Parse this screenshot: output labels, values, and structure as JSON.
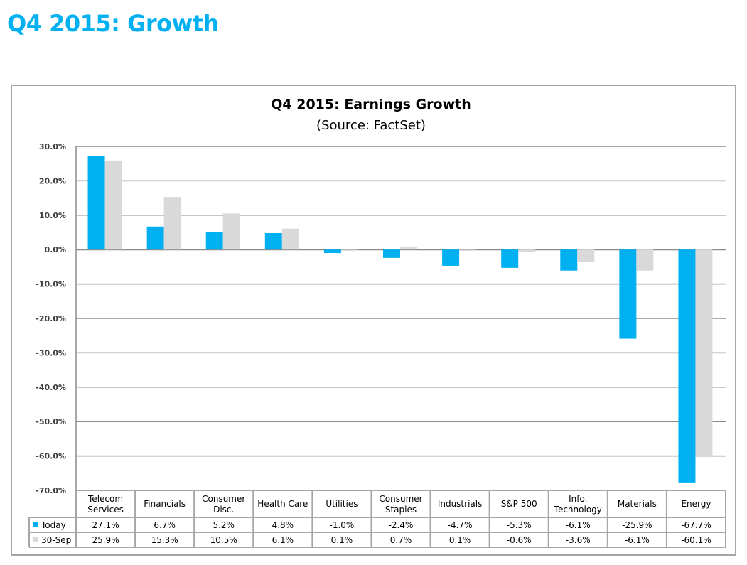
{
  "page": {
    "title": "Q4 2015: Growth"
  },
  "colors": {
    "title": "#00b0f0",
    "today": "#00b0f0",
    "sep30": "#d9d9d9",
    "grid": "#8c8c8c"
  },
  "chart_data": {
    "type": "bar",
    "title": "Q4 2015: Earnings Growth",
    "subtitle": "(Source: FactSet)",
    "xlabel": "",
    "ylabel": "",
    "ylim": [
      -70,
      30
    ],
    "yticks": [
      30,
      20,
      10,
      0,
      -10,
      -20,
      -30,
      -40,
      -50,
      -60,
      -70
    ],
    "ytick_labels": [
      "30.0%",
      "20.0%",
      "10.0%",
      "0.0%",
      "-10.0%",
      "-20.0%",
      "-30.0%",
      "-40.0%",
      "-50.0%",
      "-60.0%",
      "-70.0%"
    ],
    "grid": true,
    "legend": "data-table-below",
    "categories": [
      [
        "Telecom",
        "Services"
      ],
      [
        "Financials"
      ],
      [
        "Consumer",
        "Disc."
      ],
      [
        "Health Care"
      ],
      [
        "Utilities"
      ],
      [
        "Consumer",
        "Staples"
      ],
      [
        "Industrials"
      ],
      [
        "S&P 500"
      ],
      [
        "Info.",
        "Technology"
      ],
      [
        "Materials"
      ],
      [
        "Energy"
      ]
    ],
    "series": [
      {
        "name": "Today",
        "values": [
          27.1,
          6.7,
          5.2,
          4.8,
          -1.0,
          -2.4,
          -4.7,
          -5.3,
          -6.1,
          -25.9,
          -67.7
        ],
        "labels": [
          "27.1%",
          "6.7%",
          "5.2%",
          "4.8%",
          "-1.0%",
          "-2.4%",
          "-4.7%",
          "-5.3%",
          "-6.1%",
          "-25.9%",
          "-67.7%"
        ]
      },
      {
        "name": "30-Sep",
        "values": [
          25.9,
          15.3,
          10.5,
          6.1,
          0.1,
          0.7,
          0.1,
          -0.6,
          -3.6,
          -6.1,
          -60.1
        ],
        "labels": [
          "25.9%",
          "15.3%",
          "10.5%",
          "6.1%",
          "0.1%",
          "0.7%",
          "0.1%",
          "-0.6%",
          "-3.6%",
          "-6.1%",
          "-60.1%"
        ]
      }
    ]
  }
}
